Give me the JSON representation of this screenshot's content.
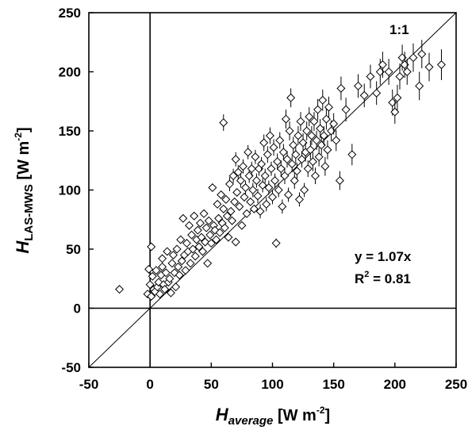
{
  "chart_data": {
    "type": "scatter",
    "title": "",
    "xlabel": {
      "var": "H",
      "sub": "average",
      "unit_open": " [W m",
      "sup": "-2",
      "unit_close": "]"
    },
    "ylabel": {
      "var": "H",
      "sub": "LAS-MWS",
      "unit_open": " [W m",
      "sup": "-2",
      "unit_close": "]"
    },
    "xlim": [
      -50,
      250
    ],
    "ylim": [
      -50,
      250
    ],
    "xticks": [
      "-50",
      "0",
      "50",
      "100",
      "150",
      "200",
      "250"
    ],
    "yticks": [
      "-50",
      "0",
      "50",
      "100",
      "150",
      "200",
      "250"
    ],
    "grid": false,
    "one_to_one_label": "1:1",
    "fit_equation": "y = 1.07x",
    "r2_prefix": "R",
    "r2_sup": "2",
    "r2_value": " = 0.81",
    "fit_slope": 1.07,
    "marker": "open-diamond",
    "points": [
      [
        -25,
        16,
        0
      ],
      [
        -2,
        12,
        0
      ],
      [
        -1,
        33,
        0
      ],
      [
        0,
        20,
        0
      ],
      [
        1,
        10,
        0
      ],
      [
        1,
        52,
        0
      ],
      [
        2,
        27,
        0
      ],
      [
        3,
        16,
        0
      ],
      [
        4,
        14,
        0
      ],
      [
        5,
        32,
        0
      ],
      [
        6,
        18,
        0
      ],
      [
        7,
        22,
        0
      ],
      [
        8,
        12,
        0
      ],
      [
        9,
        28,
        0
      ],
      [
        10,
        35,
        0
      ],
      [
        10,
        42,
        0
      ],
      [
        11,
        20,
        0
      ],
      [
        12,
        16,
        0
      ],
      [
        13,
        30,
        0
      ],
      [
        14,
        48,
        0
      ],
      [
        15,
        22,
        0
      ],
      [
        16,
        25,
        0
      ],
      [
        17,
        13,
        0
      ],
      [
        18,
        38,
        0
      ],
      [
        19,
        45,
        0
      ],
      [
        20,
        30,
        0
      ],
      [
        21,
        18,
        0
      ],
      [
        22,
        50,
        0
      ],
      [
        23,
        35,
        0
      ],
      [
        24,
        28,
        0
      ],
      [
        25,
        58,
        0
      ],
      [
        26,
        40,
        0
      ],
      [
        27,
        76,
        0
      ],
      [
        28,
        45,
        0
      ],
      [
        29,
        32,
        0
      ],
      [
        30,
        55,
        0
      ],
      [
        31,
        48,
        0
      ],
      [
        32,
        70,
        0
      ],
      [
        33,
        38,
        0
      ],
      [
        34,
        62,
        0
      ],
      [
        35,
        50,
        0
      ],
      [
        36,
        78,
        0
      ],
      [
        37,
        44,
        0
      ],
      [
        38,
        58,
        0
      ],
      [
        39,
        66,
        0
      ],
      [
        40,
        52,
        0
      ],
      [
        41,
        72,
        0
      ],
      [
        42,
        60,
        0
      ],
      [
        43,
        48,
        0
      ],
      [
        44,
        80,
        0
      ],
      [
        45,
        56,
        0
      ],
      [
        46,
        68,
        0
      ],
      [
        47,
        38,
        0
      ],
      [
        48,
        74,
        0
      ],
      [
        49,
        62,
        0
      ],
      [
        50,
        55,
        0
      ],
      [
        51,
        102,
        0
      ],
      [
        52,
        70,
        0
      ],
      [
        53,
        66,
        0
      ],
      [
        54,
        58,
        0
      ],
      [
        55,
        88,
        0
      ],
      [
        56,
        76,
        0
      ],
      [
        57,
        64,
        0
      ],
      [
        58,
        96,
        0
      ],
      [
        59,
        72,
        0
      ],
      [
        60,
        84,
        0
      ],
      [
        60,
        157,
        7
      ],
      [
        61,
        68,
        0
      ],
      [
        62,
        92,
        0
      ],
      [
        63,
        78,
        0
      ],
      [
        64,
        60,
        0
      ],
      [
        65,
        105,
        6
      ],
      [
        66,
        82,
        0
      ],
      [
        67,
        74,
        0
      ],
      [
        68,
        112,
        6
      ],
      [
        69,
        90,
        0
      ],
      [
        70,
        126,
        6
      ],
      [
        70,
        56,
        0
      ],
      [
        71,
        98,
        0
      ],
      [
        72,
        115,
        6
      ],
      [
        73,
        86,
        0
      ],
      [
        74,
        108,
        6
      ],
      [
        75,
        70,
        0
      ],
      [
        76,
        120,
        6
      ],
      [
        77,
        94,
        0
      ],
      [
        78,
        102,
        6
      ],
      [
        79,
        80,
        0
      ],
      [
        80,
        132,
        6
      ],
      [
        81,
        112,
        6
      ],
      [
        82,
        90,
        0
      ],
      [
        83,
        118,
        6
      ],
      [
        84,
        100,
        6
      ],
      [
        85,
        84,
        0
      ],
      [
        86,
        128,
        6
      ],
      [
        87,
        108,
        6
      ],
      [
        88,
        95,
        6
      ],
      [
        89,
        118,
        6
      ],
      [
        90,
        82,
        6
      ],
      [
        91,
        122,
        6
      ],
      [
        92,
        104,
        6
      ],
      [
        93,
        140,
        7
      ],
      [
        94,
        112,
        6
      ],
      [
        95,
        88,
        6
      ],
      [
        96,
        130,
        7
      ],
      [
        97,
        102,
        6
      ],
      [
        98,
        146,
        7
      ],
      [
        99,
        118,
        6
      ],
      [
        100,
        94,
        6
      ],
      [
        101,
        136,
        7
      ],
      [
        102,
        108,
        6
      ],
      [
        103,
        55,
        4
      ],
      [
        104,
        124,
        7
      ],
      [
        105,
        100,
        6
      ],
      [
        106,
        142,
        7
      ],
      [
        107,
        118,
        7
      ],
      [
        108,
        86,
        6
      ],
      [
        109,
        132,
        7
      ],
      [
        110,
        112,
        7
      ],
      [
        111,
        160,
        8
      ],
      [
        112,
        126,
        7
      ],
      [
        113,
        96,
        6
      ],
      [
        114,
        150,
        8
      ],
      [
        115,
        178,
        8
      ],
      [
        116,
        122,
        7
      ],
      [
        117,
        138,
        7
      ],
      [
        118,
        108,
        7
      ],
      [
        119,
        130,
        7
      ],
      [
        120,
        116,
        7
      ],
      [
        121,
        146,
        8
      ],
      [
        122,
        92,
        6
      ],
      [
        123,
        158,
        8
      ],
      [
        124,
        126,
        7
      ],
      [
        125,
        140,
        8
      ],
      [
        126,
        100,
        6
      ],
      [
        127,
        132,
        8
      ],
      [
        128,
        150,
        8
      ],
      [
        129,
        118,
        7
      ],
      [
        130,
        162,
        8
      ],
      [
        131,
        134,
        8
      ],
      [
        132,
        146,
        8
      ],
      [
        133,
        124,
        8
      ],
      [
        134,
        158,
        8
      ],
      [
        135,
        112,
        7
      ],
      [
        136,
        142,
        8
      ],
      [
        137,
        168,
        9
      ],
      [
        138,
        128,
        8
      ],
      [
        139,
        152,
        8
      ],
      [
        140,
        138,
        8
      ],
      [
        141,
        176,
        9
      ],
      [
        142,
        146,
        8
      ],
      [
        143,
        120,
        8
      ],
      [
        144,
        160,
        9
      ],
      [
        145,
        134,
        8
      ],
      [
        146,
        170,
        9
      ],
      [
        148,
        150,
        9
      ],
      [
        150,
        156,
        9
      ],
      [
        152,
        142,
        9
      ],
      [
        155,
        108,
        8
      ],
      [
        156,
        186,
        10
      ],
      [
        160,
        168,
        10
      ],
      [
        165,
        130,
        9
      ],
      [
        170,
        188,
        10
      ],
      [
        175,
        180,
        10
      ],
      [
        180,
        196,
        10
      ],
      [
        185,
        182,
        10
      ],
      [
        188,
        200,
        11
      ],
      [
        190,
        206,
        11
      ],
      [
        195,
        200,
        11
      ],
      [
        198,
        174,
        11
      ],
      [
        200,
        166,
        10
      ],
      [
        202,
        178,
        11
      ],
      [
        204,
        196,
        11
      ],
      [
        206,
        212,
        11
      ],
      [
        208,
        206,
        11
      ],
      [
        210,
        200,
        11
      ],
      [
        215,
        212,
        12
      ],
      [
        220,
        188,
        12
      ],
      [
        222,
        215,
        12
      ],
      [
        228,
        204,
        12
      ],
      [
        238,
        206,
        13
      ]
    ]
  }
}
